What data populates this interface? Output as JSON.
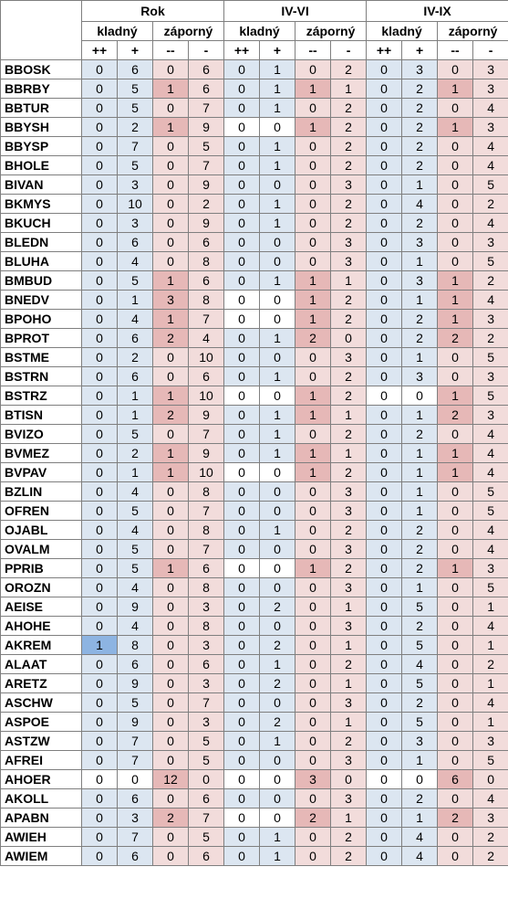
{
  "headers": {
    "groups": [
      "Rok",
      "IV-VI",
      "IV-IX"
    ],
    "sub": [
      "kladný",
      "záporný"
    ],
    "cols": [
      "++",
      "+",
      "--",
      "-"
    ]
  },
  "colors": {
    "positive_bg": "#dce6f1",
    "negative_bg": "#f2dcdb",
    "highlight_negative": "#e6b8b7",
    "highlight_positive": "#8db4e2"
  },
  "rows": [
    {
      "name": "BBOSK",
      "vals": [
        0,
        6,
        0,
        6,
        0,
        1,
        0,
        2,
        0,
        3,
        0,
        3
      ]
    },
    {
      "name": "BBRBY",
      "vals": [
        0,
        5,
        1,
        6,
        0,
        1,
        1,
        1,
        0,
        2,
        1,
        3
      ]
    },
    {
      "name": "BBTUR",
      "vals": [
        0,
        5,
        0,
        7,
        0,
        1,
        0,
        2,
        0,
        2,
        0,
        4
      ]
    },
    {
      "name": "BBYSH",
      "vals": [
        0,
        2,
        1,
        9,
        0,
        0,
        1,
        2,
        0,
        2,
        1,
        3
      ]
    },
    {
      "name": "BBYSP",
      "vals": [
        0,
        7,
        0,
        5,
        0,
        1,
        0,
        2,
        0,
        2,
        0,
        4
      ]
    },
    {
      "name": "BHOLE",
      "vals": [
        0,
        5,
        0,
        7,
        0,
        1,
        0,
        2,
        0,
        2,
        0,
        4
      ]
    },
    {
      "name": "BIVAN",
      "vals": [
        0,
        3,
        0,
        9,
        0,
        0,
        0,
        3,
        0,
        1,
        0,
        5
      ]
    },
    {
      "name": "BKMYS",
      "vals": [
        0,
        10,
        0,
        2,
        0,
        1,
        0,
        2,
        0,
        4,
        0,
        2
      ]
    },
    {
      "name": "BKUCH",
      "vals": [
        0,
        3,
        0,
        9,
        0,
        1,
        0,
        2,
        0,
        2,
        0,
        4
      ]
    },
    {
      "name": "BLEDN",
      "vals": [
        0,
        6,
        0,
        6,
        0,
        0,
        0,
        3,
        0,
        3,
        0,
        3
      ]
    },
    {
      "name": "BLUHA",
      "vals": [
        0,
        4,
        0,
        8,
        0,
        0,
        0,
        3,
        0,
        1,
        0,
        5
      ]
    },
    {
      "name": "BMBUD",
      "vals": [
        0,
        5,
        1,
        6,
        0,
        1,
        1,
        1,
        0,
        3,
        1,
        2
      ]
    },
    {
      "name": "BNEDV",
      "vals": [
        0,
        1,
        3,
        8,
        0,
        0,
        1,
        2,
        0,
        1,
        1,
        4
      ]
    },
    {
      "name": "BPOHO",
      "vals": [
        0,
        4,
        1,
        7,
        0,
        0,
        1,
        2,
        0,
        2,
        1,
        3
      ]
    },
    {
      "name": "BPROT",
      "vals": [
        0,
        6,
        2,
        4,
        0,
        1,
        2,
        0,
        0,
        2,
        2,
        2
      ]
    },
    {
      "name": "BSTME",
      "vals": [
        0,
        2,
        0,
        10,
        0,
        0,
        0,
        3,
        0,
        1,
        0,
        5
      ]
    },
    {
      "name": "BSTRN",
      "vals": [
        0,
        6,
        0,
        6,
        0,
        1,
        0,
        2,
        0,
        3,
        0,
        3
      ]
    },
    {
      "name": "BSTRZ",
      "vals": [
        0,
        1,
        1,
        10,
        0,
        0,
        1,
        2,
        0,
        0,
        1,
        5
      ]
    },
    {
      "name": "BTISN",
      "vals": [
        0,
        1,
        2,
        9,
        0,
        1,
        1,
        1,
        0,
        1,
        2,
        3
      ]
    },
    {
      "name": "BVIZO",
      "vals": [
        0,
        5,
        0,
        7,
        0,
        1,
        0,
        2,
        0,
        2,
        0,
        4
      ]
    },
    {
      "name": "BVMEZ",
      "vals": [
        0,
        2,
        1,
        9,
        0,
        1,
        1,
        1,
        0,
        1,
        1,
        4
      ]
    },
    {
      "name": "BVPAV",
      "vals": [
        0,
        1,
        1,
        10,
        0,
        0,
        1,
        2,
        0,
        1,
        1,
        4
      ]
    },
    {
      "name": "BZLIN",
      "vals": [
        0,
        4,
        0,
        8,
        0,
        0,
        0,
        3,
        0,
        1,
        0,
        5
      ]
    },
    {
      "name": "OFREN",
      "vals": [
        0,
        5,
        0,
        7,
        0,
        0,
        0,
        3,
        0,
        1,
        0,
        5
      ]
    },
    {
      "name": "OJABL",
      "vals": [
        0,
        4,
        0,
        8,
        0,
        1,
        0,
        2,
        0,
        2,
        0,
        4
      ]
    },
    {
      "name": "OVALM",
      "vals": [
        0,
        5,
        0,
        7,
        0,
        0,
        0,
        3,
        0,
        2,
        0,
        4
      ]
    },
    {
      "name": "PPRIB",
      "vals": [
        0,
        5,
        1,
        6,
        0,
        0,
        1,
        2,
        0,
        2,
        1,
        3
      ]
    },
    {
      "name": "OROZN",
      "vals": [
        0,
        4,
        0,
        8,
        0,
        0,
        0,
        3,
        0,
        1,
        0,
        5
      ]
    },
    {
      "name": "AEISE",
      "vals": [
        0,
        9,
        0,
        3,
        0,
        2,
        0,
        1,
        0,
        5,
        0,
        1
      ]
    },
    {
      "name": "AHOHE",
      "vals": [
        0,
        4,
        0,
        8,
        0,
        0,
        0,
        3,
        0,
        2,
        0,
        4
      ]
    },
    {
      "name": "AKREM",
      "vals": [
        1,
        8,
        0,
        3,
        0,
        2,
        0,
        1,
        0,
        5,
        0,
        1
      ]
    },
    {
      "name": "ALAAT",
      "vals": [
        0,
        6,
        0,
        6,
        0,
        1,
        0,
        2,
        0,
        4,
        0,
        2
      ]
    },
    {
      "name": "ARETZ",
      "vals": [
        0,
        9,
        0,
        3,
        0,
        2,
        0,
        1,
        0,
        5,
        0,
        1
      ]
    },
    {
      "name": "ASCHW",
      "vals": [
        0,
        5,
        0,
        7,
        0,
        0,
        0,
        3,
        0,
        2,
        0,
        4
      ]
    },
    {
      "name": "ASPOE",
      "vals": [
        0,
        9,
        0,
        3,
        0,
        2,
        0,
        1,
        0,
        5,
        0,
        1
      ]
    },
    {
      "name": "ASTZW",
      "vals": [
        0,
        7,
        0,
        5,
        0,
        1,
        0,
        2,
        0,
        3,
        0,
        3
      ]
    },
    {
      "name": "AFREI",
      "vals": [
        0,
        7,
        0,
        5,
        0,
        0,
        0,
        3,
        0,
        1,
        0,
        5
      ]
    },
    {
      "name": "AHOER",
      "vals": [
        0,
        0,
        12,
        0,
        0,
        0,
        3,
        0,
        0,
        0,
        6,
        0
      ]
    },
    {
      "name": "AKOLL",
      "vals": [
        0,
        6,
        0,
        6,
        0,
        0,
        0,
        3,
        0,
        2,
        0,
        4
      ]
    },
    {
      "name": "APABN",
      "vals": [
        0,
        3,
        2,
        7,
        0,
        0,
        2,
        1,
        0,
        1,
        2,
        3
      ]
    },
    {
      "name": "AWIEH",
      "vals": [
        0,
        7,
        0,
        5,
        0,
        1,
        0,
        2,
        0,
        4,
        0,
        2
      ]
    },
    {
      "name": "AWIEM",
      "vals": [
        0,
        6,
        0,
        6,
        0,
        1,
        0,
        2,
        0,
        4,
        0,
        2
      ]
    }
  ]
}
